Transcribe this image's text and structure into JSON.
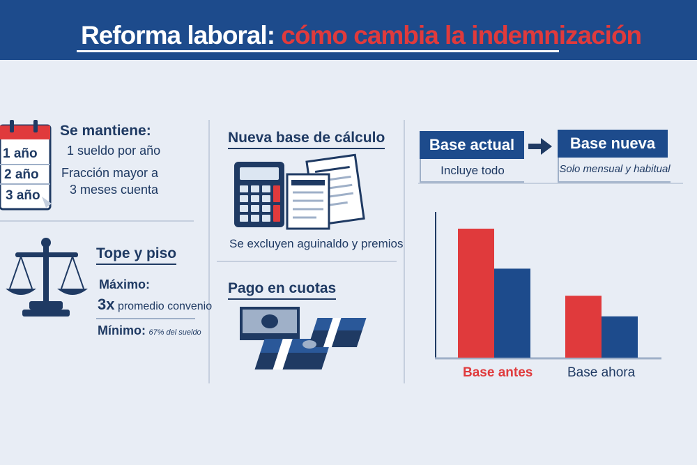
{
  "header": {
    "title_white": "Reforma laboral:",
    "title_red": "cómo cambia la indemnización"
  },
  "left": {
    "calendar_years": [
      "1 año",
      "2 año",
      "3 año"
    ],
    "mantiene": {
      "heading": "Se mantiene:",
      "line1": "1 sueldo por año",
      "line2": "Fracción mayor a",
      "line3": "3 meses cuenta"
    },
    "tope": {
      "heading": "Tope y piso",
      "max_label": "Máximo:",
      "max_value": "3x",
      "max_desc": "promedio convenio",
      "min_label": "Mínimo:",
      "min_desc": "67% del sueldo"
    }
  },
  "middle": {
    "base_calc": {
      "heading": "Nueva base de cálculo",
      "caption": "Se excluyen aguinaldo y premios"
    },
    "cuotas": {
      "heading": "Pago en cuotas"
    }
  },
  "right": {
    "base_actual": {
      "title": "Base actual",
      "desc": "Incluye todo"
    },
    "base_nueva": {
      "title": "Base nueva",
      "desc": "Solo mensual y habitual"
    },
    "arrow_icon": "right-arrow-icon"
  },
  "colors": {
    "red": "#e03a3c",
    "blue": "#1d4b8c",
    "navy": "#1f3a63"
  },
  "chart_data": {
    "type": "bar",
    "categories": [
      "Base antes",
      "Base ahora"
    ],
    "series": [
      {
        "values": [
          100,
          48
        ],
        "color": "#e03a3c"
      },
      {
        "values": [
          69,
          32
        ],
        "color": "#1d4b8c"
      }
    ],
    "ylim": [
      0,
      120
    ],
    "title": "",
    "xlabel": "",
    "ylabel": "",
    "grid": false
  }
}
